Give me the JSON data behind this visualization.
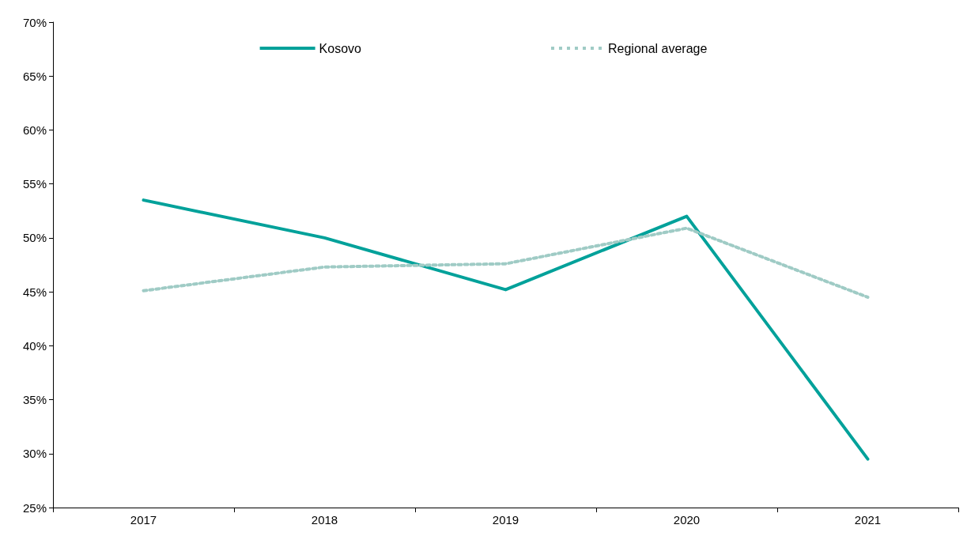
{
  "chart_data": {
    "type": "line",
    "categories": [
      "2017",
      "2018",
      "2019",
      "2020",
      "2021"
    ],
    "series": [
      {
        "name": "Kosovo",
        "color": "#00a19a",
        "values": [
          53.5,
          50.0,
          45.2,
          52.0,
          29.5
        ],
        "line_style": "solid"
      },
      {
        "name": "Regional average",
        "color": "#9fcbc5",
        "values": [
          45.1,
          47.3,
          47.6,
          50.9,
          44.5
        ],
        "line_style": "dotted"
      }
    ],
    "ylim": [
      25,
      70
    ],
    "yticks": [
      {
        "value": 25,
        "label": "25%"
      },
      {
        "value": 30,
        "label": "30%"
      },
      {
        "value": 35,
        "label": "35%"
      },
      {
        "value": 40,
        "label": "40%"
      },
      {
        "value": 45,
        "label": "45%"
      },
      {
        "value": 50,
        "label": "50%"
      },
      {
        "value": 55,
        "label": "55%"
      },
      {
        "value": 60,
        "label": "60%"
      },
      {
        "value": 65,
        "label": "65%"
      },
      {
        "value": 70,
        "label": "70%"
      }
    ],
    "grid": false,
    "legend": "top",
    "marker": "none"
  }
}
